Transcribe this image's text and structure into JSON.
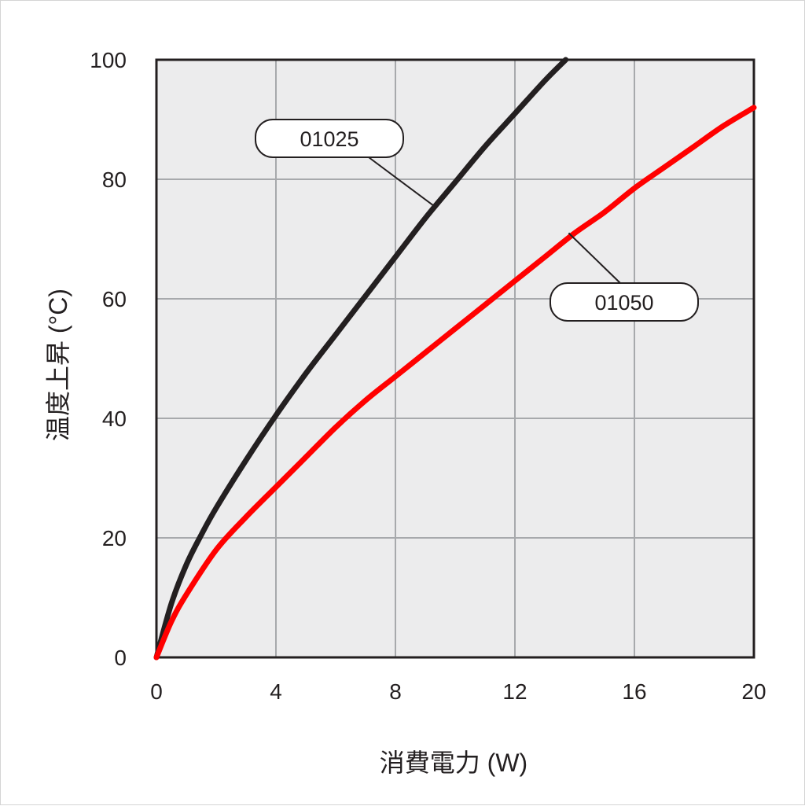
{
  "chart_data": {
    "type": "line",
    "xlabel": "消費電力 (W)",
    "ylabel": "温度上昇 (°C)",
    "xlim": [
      0,
      20
    ],
    "ylim": [
      0,
      100
    ],
    "x_ticks": [
      "0",
      "4",
      "8",
      "12",
      "16",
      "20"
    ],
    "y_ticks": [
      "0",
      "20",
      "40",
      "60",
      "80",
      "100"
    ],
    "grid": true,
    "background": "#ececed",
    "series": [
      {
        "name": "01025",
        "color": "#231f20",
        "x": [
          0,
          0.5,
          1,
          1.5,
          2,
          3,
          4,
          5,
          6,
          7,
          8,
          9,
          10,
          11,
          12,
          13,
          13.7
        ],
        "y": [
          0,
          9,
          15.5,
          20.5,
          25,
          33,
          40.5,
          47.5,
          54,
          60.5,
          67,
          73.5,
          79.5,
          85.5,
          91,
          96.5,
          100
        ]
      },
      {
        "name": "01050",
        "color": "#ff0000",
        "x": [
          0,
          0.5,
          1,
          2,
          3,
          4,
          5,
          6,
          7,
          8,
          9,
          10,
          11,
          12,
          13,
          14,
          15,
          16,
          17,
          18,
          19,
          20
        ],
        "y": [
          0,
          6,
          10.5,
          18,
          23.5,
          28.5,
          33.5,
          38.5,
          43,
          47,
          51,
          55,
          59,
          63,
          67,
          71,
          74.5,
          78.5,
          82,
          85.5,
          89,
          92
        ]
      }
    ],
    "annotations": [
      {
        "text": "01025",
        "series": 0,
        "anchor_x": 9.3,
        "anchor_y": 75.5
      },
      {
        "text": "01050",
        "series": 1,
        "anchor_x": 13.8,
        "anchor_y": 71
      }
    ]
  }
}
